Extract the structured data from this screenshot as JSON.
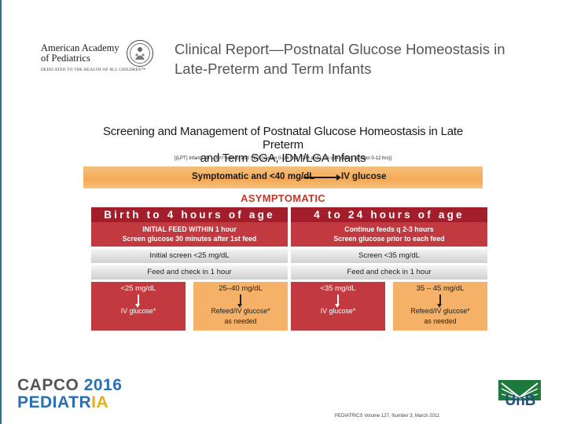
{
  "header": {
    "org_name_line1": "American Academy",
    "org_name_line2": "of Pediatrics",
    "org_tagline": "DEDICATED TO THE HEALTH OF ALL CHILDREN™",
    "report_title_line1": "Clinical Report—Postnatal Glucose Homeostasis in",
    "report_title_line2": "Late-Preterm and Term Infants"
  },
  "figure": {
    "title_line1": "Screening and Management of Postnatal Glucose Homeostasis in Late Preterm",
    "title_line2": "and Term SGA, IDM/LGA Infants",
    "subtitle": "[(LPT) Infants 34 – 36⁶/⁷ weeks and SGA (screen 0–24 hrs); IDM and LGA ≥34 weeks (screen 0-12 hrs)]",
    "symptomatic_condition": "Symptomatic and <40 mg/dL",
    "symptomatic_action": "IV glucose",
    "asymptomatic_label": "ASYMPTOMATIC",
    "columns": [
      {
        "header": "Birth to 4 hours of age",
        "instruction_line1": "INITIAL FEED WITHIN 1 hour",
        "instruction_line2": "Screen glucose 30 minutes after 1st feed",
        "screen": "Initial screen <25 mg/dL",
        "feed_check": "Feed and check in 1 hour",
        "low_box": {
          "range": "<25 mg/dL",
          "action": "IV glucose*"
        },
        "mid_box": {
          "range": "25–40 mg/dL",
          "action_line1": "Refeed/IV glucose*",
          "action_line2": "as needed"
        }
      },
      {
        "header": "4 to 24 hours of age",
        "instruction_line1": "Continue feeds q 2-3 hours",
        "instruction_line2": "Screen glucose prior to each feed",
        "screen": "Screen <35 mg/dL",
        "feed_check": "Feed and check in 1 hour",
        "low_box": {
          "range": "<35 mg/dL",
          "action": "IV glucose*"
        },
        "mid_box": {
          "range": "35 – 45 mg/dL",
          "action_line1": "Refeed/IV glucose*",
          "action_line2": "as needed"
        }
      }
    ]
  },
  "footer": {
    "event_line1": "CAPCO",
    "event_year": "2016",
    "event_line2_a": "PEDIATR",
    "event_line2_b": "IA",
    "university": "UnB",
    "citation": "PEDIATRICS Volume 127, Number 3, March 2011"
  },
  "colors": {
    "header_red": "#a31e2b",
    "block_red": "#c23a3f",
    "orange": "#f5b168",
    "asymptomatic_text": "#c0392b",
    "unb_green": "#1e7a3c",
    "unb_blue": "#1f4f7f"
  }
}
